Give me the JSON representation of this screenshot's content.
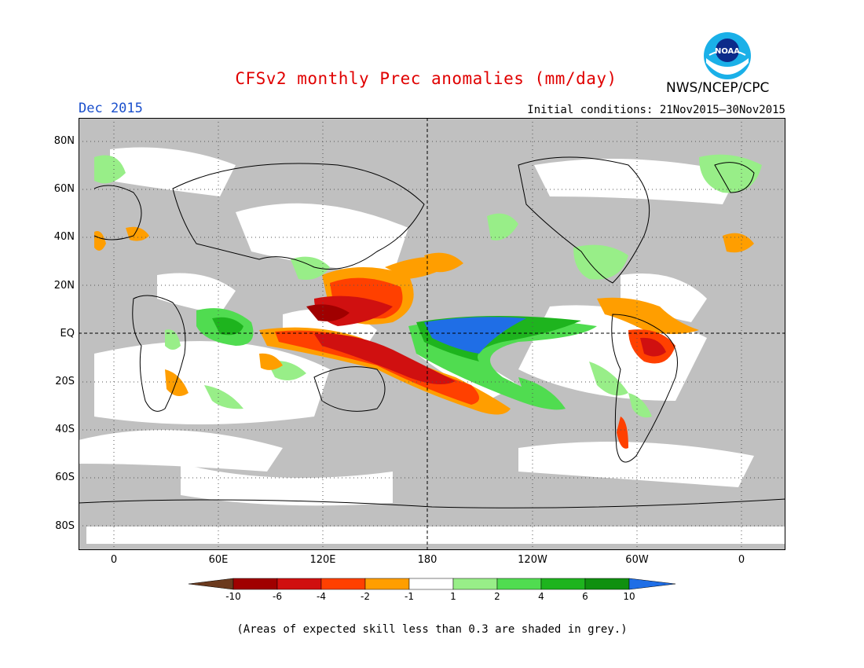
{
  "header": {
    "title": "CFSv2 monthly Prec anomalies (mm/day)",
    "agency": "NWS/NCEP/CPC",
    "month": "Dec 2015",
    "initial_conditions": "Initial conditions: 21Nov2015–30Nov2015",
    "logo_text": "NOAA"
  },
  "map": {
    "lat_labels": [
      "80N",
      "60N",
      "40N",
      "20N",
      "EQ",
      "20S",
      "40S",
      "60S",
      "80S"
    ],
    "lon_labels": [
      "0",
      "60E",
      "120E",
      "180",
      "120W",
      "60W",
      "0"
    ]
  },
  "legend": {
    "levels": [
      "-10",
      "-6",
      "-4",
      "-2",
      "-1",
      "1",
      "2",
      "4",
      "6",
      "10"
    ],
    "colors": [
      "#6b3a1e",
      "#a00000",
      "#d01010",
      "#ff4000",
      "#ff9e00",
      "#ffffff",
      "#98ee88",
      "#50dc50",
      "#1eb41e",
      "#109010",
      "#1f6ee6"
    ]
  },
  "colors": {
    "skill_grey": "#c0c0c0",
    "title_red": "#e00000",
    "month_blue": "#1a4fcc"
  },
  "footer": {
    "note": "(Areas of expected skill less than 0.3 are shaded in grey.)"
  }
}
